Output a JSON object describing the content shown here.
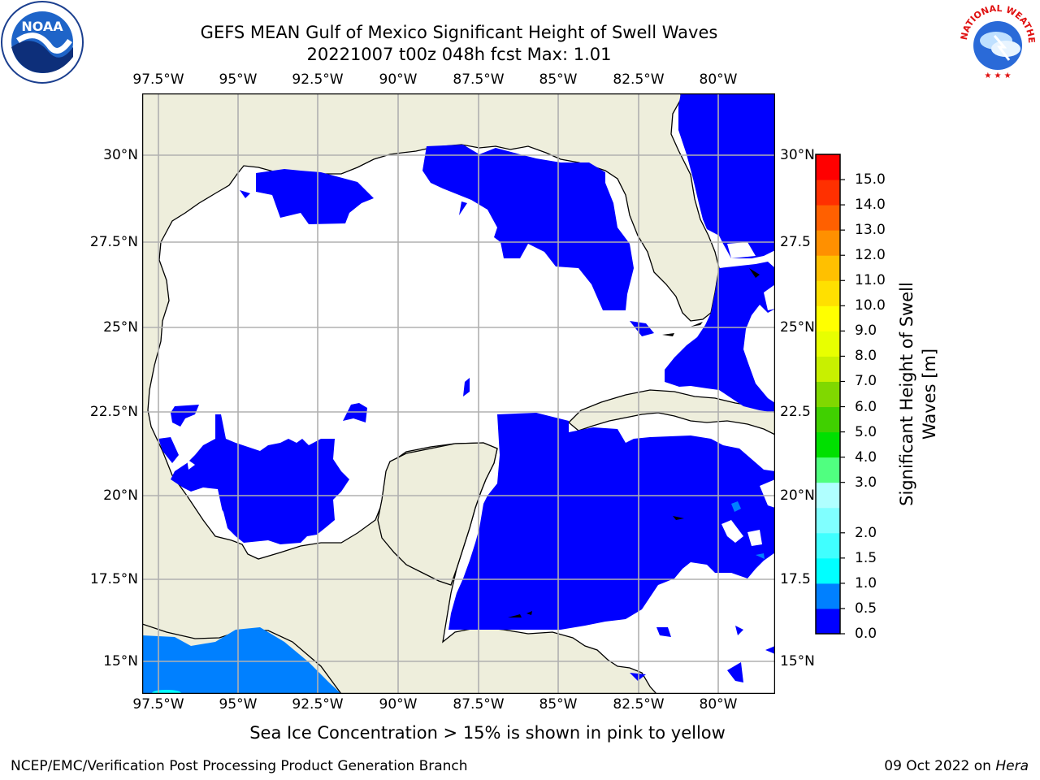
{
  "title": {
    "line1": "GEFS MEAN Gulf of Mexico Significant Height of Swell Waves",
    "line2": "20221007 t00z 048h fcst   Max: 1.01"
  },
  "map": {
    "lon_labels": [
      "97.5°W",
      "95°W",
      "92.5°W",
      "90°W",
      "87.5°W",
      "85°W",
      "82.5°W",
      "80°W"
    ],
    "lat_labels": [
      "30°N",
      "27.5°N",
      "25°N",
      "22.5°N",
      "20°N",
      "17.5°N",
      "15°N"
    ],
    "lat_labels_right": [
      "30°N",
      "27.5",
      "25°N",
      "22.5",
      "20°N",
      "17.5",
      "15°N"
    ],
    "colors": {
      "land": "#eeeedc",
      "ocean_low": "#0000ff",
      "ocean_mid": "#0080ff",
      "ocean_hi": "#00ffff",
      "grid": "#b0b0b0"
    }
  },
  "colorbar": {
    "label": "Significant Height of Swell Waves [m]",
    "label_line1": "Significant Height of Swell",
    "label_line2": "Waves [m]",
    "ticks": [
      "15.0",
      "14.0",
      "13.0",
      "12.0",
      "11.0",
      "10.0",
      "9.0",
      "8.0",
      "7.0",
      "6.0",
      "5.0",
      "4.0",
      "3.0",
      "2.0",
      "1.5",
      "1.0",
      "0.5",
      "0.0"
    ],
    "colors": [
      "#0000ff",
      "#0080ff",
      "#00ffff",
      "#40ffff",
      "#80ffff",
      "#b0ffff",
      "#50ff80",
      "#00e000",
      "#40d000",
      "#80d800",
      "#c8f000",
      "#e8ff00",
      "#ffff00",
      "#ffe000",
      "#ffc000",
      "#ff9000",
      "#ff6000",
      "#ff3000",
      "#ff0000"
    ]
  },
  "note": "Sea Ice Concentration > 15% is shown in pink to yellow",
  "footer": {
    "left": "NCEP/EMC/Verification Post Processing Product Generation Branch",
    "date": "09 Oct 2022 on",
    "host": "Hera"
  },
  "logos": {
    "noaa_text": "NOAA",
    "nws_text": "NATIONAL WEATHER SERVICE"
  }
}
